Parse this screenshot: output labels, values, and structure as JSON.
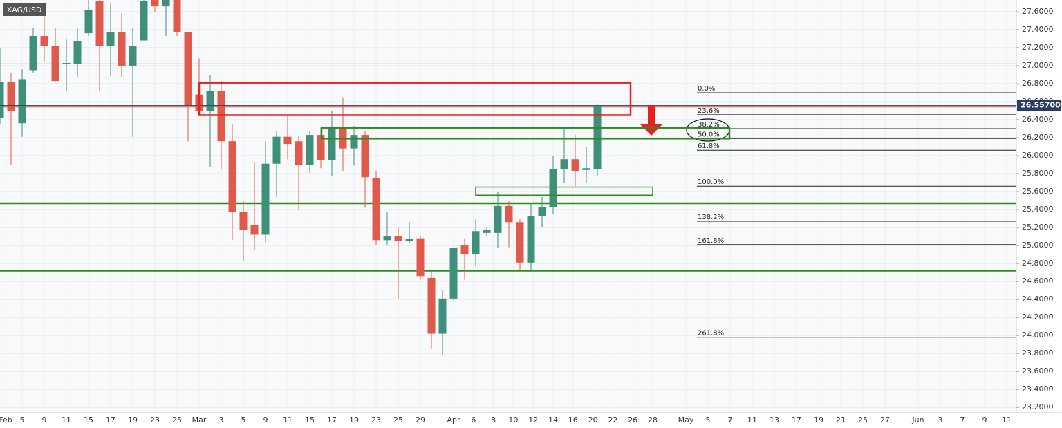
{
  "chart_data": {
    "type": "candlestick",
    "title": "XAG/USD",
    "x_labels": [
      "Feb",
      "5",
      "9",
      "11",
      "15",
      "17",
      "19",
      "23",
      "25",
      "Mar",
      "3",
      "5",
      "9",
      "11",
      "15",
      "17",
      "19",
      "23",
      "25",
      "29",
      "Apr",
      "6",
      "8",
      "10",
      "12",
      "14",
      "16",
      "20",
      "22",
      "26",
      "28",
      "May",
      "5",
      "7",
      "11",
      "13",
      "17",
      "19",
      "21",
      "25",
      "27",
      "Jun",
      "3",
      "7",
      "9",
      "11"
    ],
    "open": [
      26.42,
      26.82,
      26.36,
      26.95,
      27.33,
      27.22,
      27.02,
      27.02,
      27.36,
      27.72,
      27.22,
      27.37,
      27.0,
      27.28,
      27.74,
      27.66,
      27.75,
      27.37,
      26.68,
      26.5,
      26.72,
      26.16,
      25.37,
      25.23,
      25.12,
      25.91,
      26.21,
      26.16,
      25.9,
      26.23,
      25.95,
      26.31,
      26.08,
      26.23,
      25.75,
      25.06,
      25.1,
      25.05,
      25.08,
      24.64,
      24.02,
      24.41,
      25.0,
      24.9,
      25.14,
      25.14,
      25.44,
      25.26,
      24.81,
      25.33,
      25.43,
      25.85,
      25.96,
      25.84,
      25.85
    ],
    "high": [
      27.19,
      26.92,
      26.96,
      27.42,
      27.58,
      27.42,
      27.29,
      27.42,
      27.73,
      27.73,
      27.7,
      27.58,
      27.42,
      27.73,
      27.74,
      27.75,
      27.75,
      27.37,
      27.08,
      26.9,
      26.83,
      26.35,
      25.5,
      25.93,
      26.16,
      26.27,
      26.46,
      26.22,
      26.27,
      26.31,
      26.5,
      26.64,
      26.33,
      26.27,
      25.83,
      25.37,
      25.2,
      25.26,
      25.1,
      24.7,
      24.5,
      24.98,
      25.08,
      25.29,
      25.2,
      25.6,
      25.5,
      25.29,
      25.47,
      25.54,
      26.0,
      26.31,
      26.23,
      26.1,
      26.58
    ],
    "low": [
      26.35,
      25.9,
      26.21,
      26.92,
      27.04,
      26.82,
      26.72,
      26.87,
      27.33,
      26.72,
      26.88,
      26.87,
      26.21,
      27.28,
      27.6,
      27.33,
      27.33,
      26.16,
      26.5,
      25.87,
      25.85,
      25.06,
      24.83,
      24.95,
      25.04,
      25.54,
      25.96,
      25.4,
      25.81,
      25.86,
      25.77,
      25.83,
      25.89,
      25.42,
      25.0,
      25.0,
      24.41,
      25.03,
      24.62,
      23.85,
      23.78,
      24.39,
      24.62,
      24.77,
      25.1,
      24.97,
      24.98,
      24.72,
      24.7,
      25.2,
      25.35,
      25.7,
      25.66,
      25.7,
      25.77
    ],
    "close": [
      26.82,
      26.5,
      26.85,
      27.33,
      27.22,
      26.83,
      27.03,
      27.27,
      27.62,
      27.22,
      27.37,
      27.0,
      27.22,
      27.72,
      27.66,
      27.75,
      27.37,
      26.56,
      26.5,
      26.72,
      26.16,
      25.37,
      25.17,
      25.12,
      25.91,
      26.21,
      26.13,
      25.9,
      26.23,
      25.95,
      26.31,
      26.08,
      26.23,
      25.76,
      25.06,
      25.1,
      25.05,
      25.07,
      24.66,
      24.02,
      24.41,
      24.97,
      24.9,
      25.16,
      25.17,
      25.44,
      25.26,
      24.81,
      25.33,
      25.43,
      25.85,
      25.96,
      25.83,
      25.86,
      26.557
    ],
    "up_color": "#3f8f7b",
    "down_color": "#e05a4b",
    "ylim": [
      23.14,
      27.73
    ],
    "yticks": [
      {
        "value": 23.2,
        "label": "23.2000"
      },
      {
        "value": 23.4,
        "label": "23.4000"
      },
      {
        "value": 23.6,
        "label": "23.6000"
      },
      {
        "value": 23.8,
        "label": "23.8000"
      },
      {
        "value": 24.0,
        "label": "24.0000"
      },
      {
        "value": 24.2,
        "label": "24.2000"
      },
      {
        "value": 24.4,
        "label": "24.4000"
      },
      {
        "value": 24.6,
        "label": "24.6000"
      },
      {
        "value": 24.8,
        "label": "24.8000"
      },
      {
        "value": 25.0,
        "label": "25.0000"
      },
      {
        "value": 25.2,
        "label": "25.2000"
      },
      {
        "value": 25.4,
        "label": "25.4000"
      },
      {
        "value": 25.6,
        "label": "25.6000"
      },
      {
        "value": 25.8,
        "label": "25.8000"
      },
      {
        "value": 26.0,
        "label": "26.0000"
      },
      {
        "value": 26.2,
        "label": "26.2000"
      },
      {
        "value": 26.4,
        "label": "26.4000"
      },
      {
        "value": 26.6,
        "label": "26.6000"
      },
      {
        "value": 26.8,
        "label": "26.8000"
      },
      {
        "value": 27.0,
        "label": "27.0000"
      },
      {
        "value": 27.2,
        "label": "27.2000"
      },
      {
        "value": 27.4,
        "label": "27.4000"
      },
      {
        "value": 27.6,
        "label": "27.6000"
      }
    ],
    "grid": true,
    "last_price": {
      "value": 26.557,
      "label": "26.55700"
    },
    "lines": [
      {
        "value": 27.02,
        "color": "#e05050"
      },
      {
        "value": 26.54,
        "color": "#e05050"
      },
      {
        "value": 25.47,
        "color": "#2e8b1e"
      },
      {
        "value": 24.72,
        "color": "#2e8b1e"
      }
    ],
    "zones": [
      {
        "top": 26.81,
        "bottom": 26.45,
        "color": "#e82020"
      },
      {
        "top": 26.31,
        "bottom": 26.19,
        "color": "#2e8b1e"
      },
      {
        "top": 25.65,
        "bottom": 25.56,
        "color": "#2e8b1e"
      }
    ],
    "fib_levels": [
      {
        "value": 26.7,
        "label": "0.0%"
      },
      {
        "value": 26.455,
        "label": "23.6%"
      },
      {
        "value": 26.3,
        "label": "38.2%"
      },
      {
        "value": 26.19,
        "label": "50.0%"
      },
      {
        "value": 26.06,
        "label": "61.8%"
      },
      {
        "value": 25.66,
        "label": "100.0%"
      },
      {
        "value": 25.27,
        "label": "138.2%"
      },
      {
        "value": 25.01,
        "label": "161.8%"
      },
      {
        "value": 23.98,
        "label": "261.8%"
      }
    ]
  }
}
